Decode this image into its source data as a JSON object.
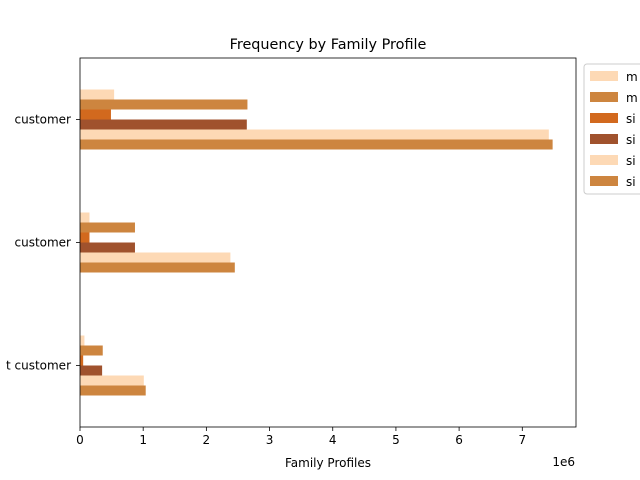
{
  "chart_data": {
    "type": "bar",
    "orientation": "horizontal",
    "title": "Frequency by Family Profile",
    "xlabel": "Family Profiles",
    "ylabel": "",
    "x_offset_label": "1e6",
    "xlim": [
      0,
      7.85
    ],
    "x_ticks": [
      0,
      1,
      2,
      3,
      4,
      5,
      6,
      7
    ],
    "categories": [
      " customer",
      " customer",
      "t customer"
    ],
    "legend_position": "outside-right",
    "series": [
      {
        "name": "m",
        "color": "#fdd9b5",
        "values": [
          0.54,
          0.15,
          0.07
        ]
      },
      {
        "name": "m",
        "color": "#cd853f",
        "values": [
          2.65,
          0.87,
          0.36
        ]
      },
      {
        "name": "si",
        "color": "#d2691e",
        "values": [
          0.49,
          0.15,
          0.05
        ]
      },
      {
        "name": "si",
        "color": "#a0522d",
        "values": [
          2.64,
          0.87,
          0.35
        ]
      },
      {
        "name": "si",
        "color": "#fdd9b5",
        "values": [
          7.42,
          2.38,
          1.01
        ]
      },
      {
        "name": "si",
        "color": "#cd853f",
        "values": [
          7.48,
          2.45,
          1.04
        ]
      }
    ]
  }
}
